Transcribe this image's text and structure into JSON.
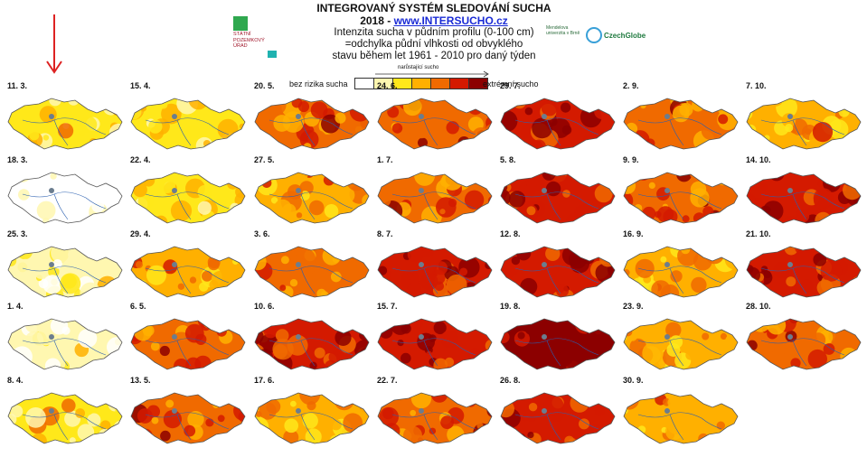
{
  "header": {
    "title": "INTEGROVANÝ SYSTÉM SLEDOVÁNÍ SUCHA",
    "year": "2018 -",
    "website": "www.INTERSUCHO.cz",
    "desc_line1": "Intenzita sucha v půdním profilu (0-100 cm)",
    "desc_line2": "=odchylka půdní vlhkosti od obvyklého",
    "desc_line3": "stavu během let 1961 - 2010 pro daný týden"
  },
  "logos": {
    "spu_text": "STÁTNÍ POZEMKOVÝ ÚŘAD",
    "mendel_text": "Mendelova univerzita v Brně",
    "czechglobe_text": "CzechGlobe"
  },
  "legend": {
    "left_label": "bez rizika sucha",
    "right_label": "extrémní sucho",
    "top_label": "narůstající sucho",
    "colors": [
      "#ffffff",
      "#fff7b0",
      "#ffe81a",
      "#ffb000",
      "#f06a00",
      "#d41a00",
      "#8c0000"
    ]
  },
  "maps": [
    {
      "date": "11. 3.",
      "level": 2
    },
    {
      "date": "18. 3.",
      "level": 0
    },
    {
      "date": "25. 3.",
      "level": 1
    },
    {
      "date": "1. 4.",
      "level": 1
    },
    {
      "date": "8. 4.",
      "level": 2
    },
    {
      "date": "15. 4.",
      "level": 2
    },
    {
      "date": "22. 4.",
      "level": 2
    },
    {
      "date": "29. 4.",
      "level": 3
    },
    {
      "date": "6. 5.",
      "level": 4
    },
    {
      "date": "13. 5.",
      "level": 4
    },
    {
      "date": "20. 5.",
      "level": 4
    },
    {
      "date": "27. 5.",
      "level": 3
    },
    {
      "date": "3. 6.",
      "level": 4
    },
    {
      "date": "10. 6.",
      "level": 5
    },
    {
      "date": "17. 6.",
      "level": 3
    },
    {
      "date": "24. 6.",
      "level": 4
    },
    {
      "date": "1. 7.",
      "level": 4
    },
    {
      "date": "8. 7.",
      "level": 5
    },
    {
      "date": "15. 7.",
      "level": 5
    },
    {
      "date": "22. 7.",
      "level": 4
    },
    {
      "date": "29. 7.",
      "level": 5
    },
    {
      "date": "5. 8.",
      "level": 5
    },
    {
      "date": "12. 8.",
      "level": 5
    },
    {
      "date": "19. 8.",
      "level": 6
    },
    {
      "date": "26. 8.",
      "level": 5
    },
    {
      "date": "2. 9.",
      "level": 4
    },
    {
      "date": "9. 9.",
      "level": 4
    },
    {
      "date": "16. 9.",
      "level": 3
    },
    {
      "date": "23. 9.",
      "level": 3
    },
    {
      "date": "30. 9.",
      "level": 3
    },
    {
      "date": "7. 10.",
      "level": 3
    },
    {
      "date": "14. 10.",
      "level": 5
    },
    {
      "date": "21. 10.",
      "level": 5
    },
    {
      "date": "28. 10.",
      "level": 4
    }
  ]
}
